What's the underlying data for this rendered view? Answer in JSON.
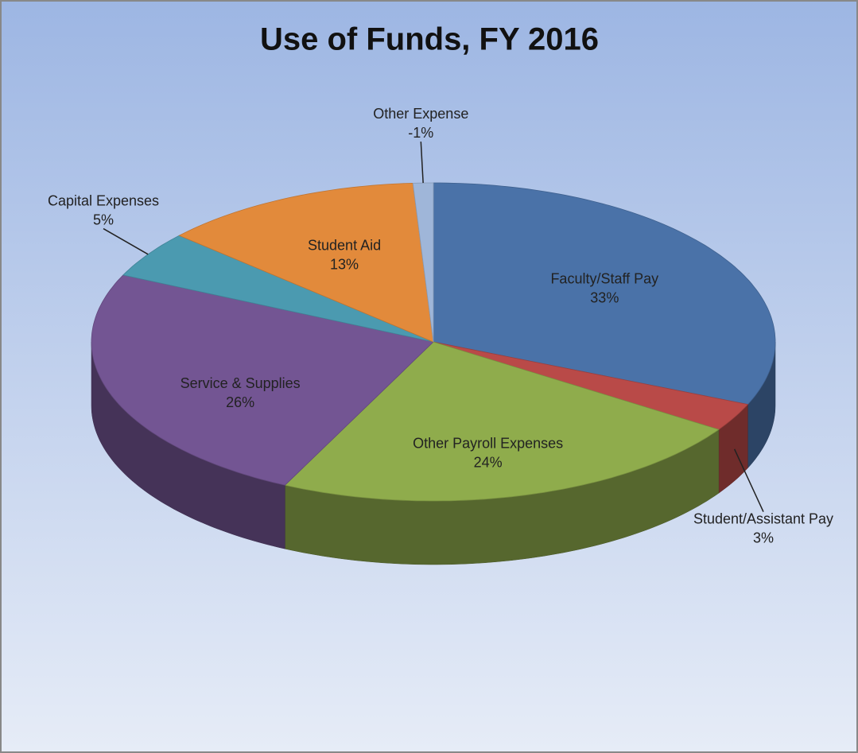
{
  "chart_data": {
    "type": "pie3d",
    "title": "Use of Funds, FY 2016",
    "categories": [
      "Faculty/Staff Pay",
      "Student/Assistant Pay",
      "Other Payroll Expenses",
      "Service & Supplies",
      "Capital Expenses",
      "Student Aid",
      "Other Expense"
    ],
    "values": [
      33,
      3,
      24,
      26,
      5,
      13,
      -1
    ],
    "value_labels": [
      "33%",
      "3%",
      "24%",
      "26%",
      "5%",
      "13%",
      "-1%"
    ],
    "colors": [
      "#4a72a8",
      "#b94a48",
      "#8fac4c",
      "#735593",
      "#4b9ab0",
      "#e28a3b",
      "#9fb6d9"
    ]
  }
}
